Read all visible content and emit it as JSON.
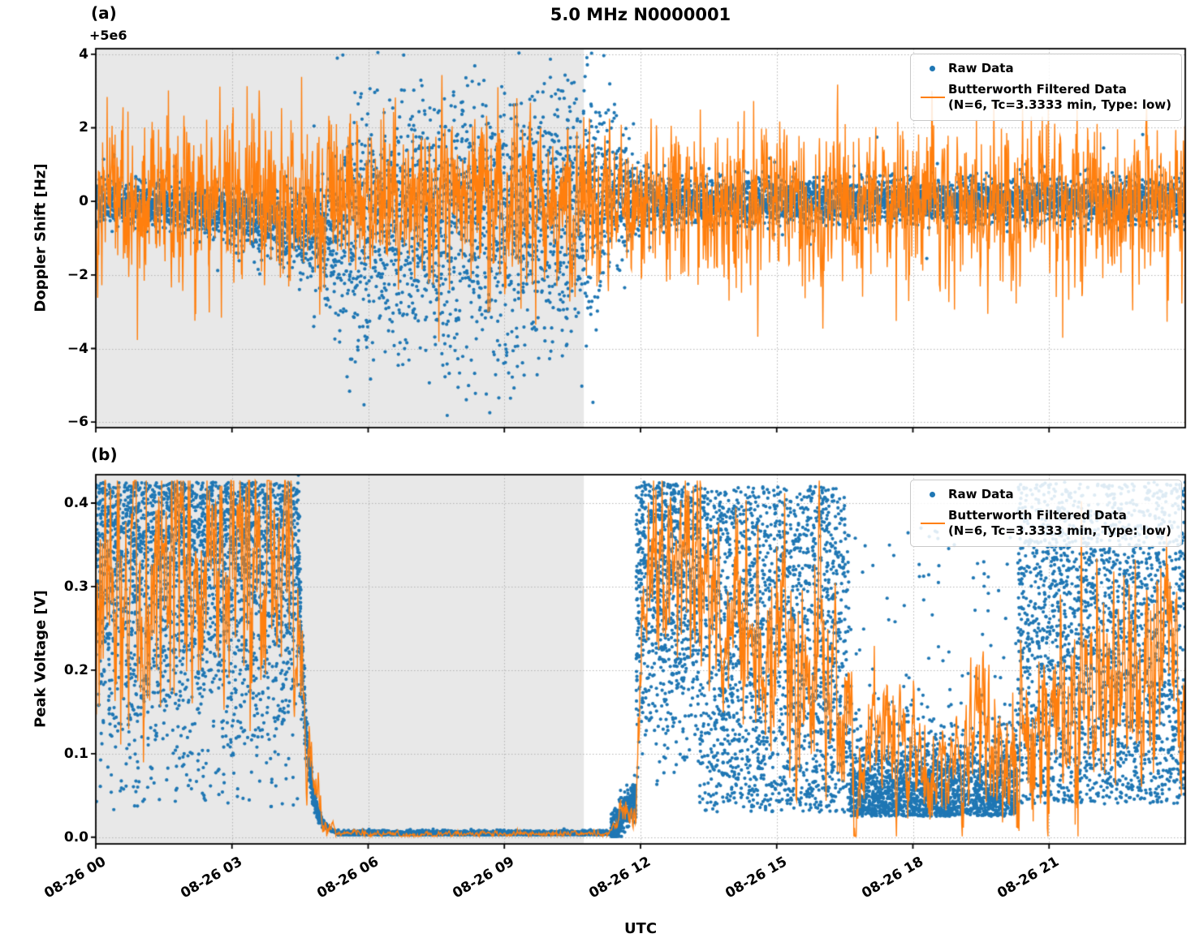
{
  "title": "5.0 MHz N0000001",
  "xlabel": "UTC",
  "x_axis": {
    "unit": "UTC time (hours on 08-26)",
    "range_hours": [
      0,
      24
    ],
    "ticks": [
      {
        "h": 0,
        "label": "08-26 00"
      },
      {
        "h": 3,
        "label": "08-26 03"
      },
      {
        "h": 6,
        "label": "08-26 06"
      },
      {
        "h": 9,
        "label": "08-26 09"
      },
      {
        "h": 12,
        "label": "08-26 12"
      },
      {
        "h": 15,
        "label": "08-26 15"
      },
      {
        "h": 18,
        "label": "08-26 18"
      },
      {
        "h": 21,
        "label": "08-26 21"
      }
    ]
  },
  "shaded_region_hours": [
    0,
    10.75
  ],
  "colors": {
    "raw": "#1f77b4",
    "filtered": "#ff7f0e",
    "shade": "#e8e8e8",
    "grid": "#b5b5b5",
    "spine": "#000000"
  },
  "legend": {
    "raw_label": "Raw Data",
    "filtered_label_line1": "Butterworth Filtered Data",
    "filtered_label_line2": "(N=6, Tc=3.3333 min, Type: low)"
  },
  "chart_data": [
    {
      "type": "scatter+line",
      "panel": "(a)",
      "ylabel": "Doppler Shift [Hz]",
      "y_offset_text": "+5e6",
      "ylim": [
        -6.15,
        4.15
      ],
      "yticks": [
        {
          "v": 4,
          "label": "4"
        },
        {
          "v": 2,
          "label": "2"
        },
        {
          "v": 0,
          "label": "0"
        },
        {
          "v": -2,
          "label": "−2"
        },
        {
          "v": -4,
          "label": "−4"
        },
        {
          "v": -6,
          "label": "−6"
        }
      ],
      "series": [
        {
          "name": "Raw Data",
          "kind": "scatter",
          "gen": "gauss_envelope",
          "rate_per_hour": 360,
          "tail_p": 0.02,
          "controls_t_mean_sdup_sddown": [
            [
              0,
              0.0,
              0.3,
              0.3
            ],
            [
              2,
              -0.1,
              0.3,
              0.35
            ],
            [
              4,
              -0.55,
              0.35,
              0.45
            ],
            [
              5,
              -0.85,
              0.6,
              0.7
            ],
            [
              5.6,
              -0.5,
              1.4,
              1.8
            ],
            [
              7,
              -0.5,
              1.5,
              1.9
            ],
            [
              9,
              -0.4,
              1.6,
              2.0
            ],
            [
              10.8,
              0.1,
              1.5,
              1.7
            ],
            [
              11.4,
              0.3,
              1.0,
              1.0
            ],
            [
              11.9,
              0.1,
              0.5,
              0.5
            ],
            [
              12.5,
              0.0,
              0.3,
              0.3
            ],
            [
              24,
              0.0,
              0.28,
              0.28
            ]
          ]
        },
        {
          "name": "Butterworth Filtered Data (N=6, Tc=3.3333 min, Type: low)",
          "kind": "line",
          "gen": "osc_line",
          "dt_min": 0.5,
          "ar": 0.35,
          "sd": 0.95,
          "spike_p": 0.012,
          "clamp": [
            -6.05,
            3.9
          ],
          "end_drop": -6.05,
          "controls_t_mean_amp": [
            [
              0,
              0,
              1.05
            ],
            [
              5,
              0,
              1.15
            ],
            [
              11.5,
              0,
              1.1
            ],
            [
              12,
              0,
              1.0
            ],
            [
              24,
              0,
              1.0
            ]
          ]
        }
      ]
    },
    {
      "type": "scatter+line",
      "panel": "(b)",
      "ylabel": "Peak Voltage [V]",
      "ylim": [
        -0.008,
        0.434
      ],
      "yticks": [
        {
          "v": 0.4,
          "label": "0.4"
        },
        {
          "v": 0.3,
          "label": "0.3"
        },
        {
          "v": 0.2,
          "label": "0.2"
        },
        {
          "v": 0.1,
          "label": "0.1"
        },
        {
          "v": 0.0,
          "label": "0.0"
        }
      ],
      "series": [
        {
          "name": "Raw Data",
          "kind": "scatter",
          "gen": "segments",
          "segments": [
            {
              "t0": 0,
              "t1": 4.45,
              "dist": "topmix",
              "rate": 650,
              "p_top": 0.55,
              "top_lo": 0.32,
              "top_hi": 0.425,
              "tail_anchor": 0.32,
              "tail_sd": 0.12,
              "tail_lo": 0.03
            },
            {
              "t0": 4.45,
              "t1": 5.3,
              "dist": "decay",
              "rate": 700,
              "y0": 0.36,
              "tau": 0.17,
              "base": 0.004,
              "noise_frac": 0.15
            },
            {
              "t0": 5.3,
              "t1": 11.35,
              "dist": "flat",
              "rate": 500,
              "base": 0.003,
              "noise": 0.002
            },
            {
              "t0": 11.35,
              "t1": 11.9,
              "dist": "ramp",
              "rate": 600,
              "y0": 0.006,
              "y1": 0.05,
              "noise": 0.012
            },
            {
              "t0": 11.9,
              "t1": 13.3,
              "dist": "topmix",
              "rate": 650,
              "p_top": 0.5,
              "top_lo": 0.3,
              "top_hi": 0.425,
              "tail_anchor": 0.3,
              "tail_sd": 0.1,
              "tail_lo": 0.06
            },
            {
              "t0": 13.3,
              "t1": 16.6,
              "dist": "uniform",
              "rate": 600,
              "lo": 0.03,
              "hi": 0.42
            },
            {
              "t0": 16.6,
              "t1": 20.3,
              "dist": "lowspike",
              "rate": 600,
              "base": 0.025,
              "sd": 0.045,
              "spike_p": 0.05,
              "spike_hi": 0.38
            },
            {
              "t0": 20.3,
              "t1": 24,
              "dist": "uniform",
              "rate": 600,
              "lo": 0.04,
              "hi": 0.425
            }
          ]
        },
        {
          "name": "Butterworth Filtered Data (N=6, Tc=3.3333 min, Type: low)",
          "kind": "line",
          "gen": "osc_line",
          "dt_min": 0.75,
          "ar": 0.55,
          "sd": 0.8,
          "spike_p": 0,
          "clamp": [
            0.001,
            0.427
          ],
          "controls_t_mean_amp": [
            [
              0,
              0.3,
              0.1
            ],
            [
              2,
              0.32,
              0.09
            ],
            [
              4.3,
              0.33,
              0.08
            ],
            [
              4.6,
              0.15,
              0.04
            ],
            [
              5.0,
              0.02,
              0.008
            ],
            [
              5.4,
              0.004,
              0.002
            ],
            [
              11.3,
              0.004,
              0.002
            ],
            [
              11.6,
              0.03,
              0.01
            ],
            [
              11.9,
              0.03,
              0.015
            ],
            [
              12.05,
              0.32,
              0.06
            ],
            [
              13,
              0.33,
              0.07
            ],
            [
              14,
              0.25,
              0.08
            ],
            [
              15,
              0.22,
              0.09
            ],
            [
              16,
              0.17,
              0.08
            ],
            [
              17,
              0.1,
              0.05
            ],
            [
              18,
              0.09,
              0.04
            ],
            [
              19,
              0.08,
              0.04
            ],
            [
              19.5,
              0.12,
              0.07
            ],
            [
              20,
              0.08,
              0.04
            ],
            [
              20.5,
              0.12,
              0.06
            ],
            [
              21,
              0.15,
              0.07
            ],
            [
              22,
              0.18,
              0.08
            ],
            [
              23,
              0.2,
              0.08
            ],
            [
              24,
              0.22,
              0.08
            ]
          ]
        }
      ]
    }
  ]
}
